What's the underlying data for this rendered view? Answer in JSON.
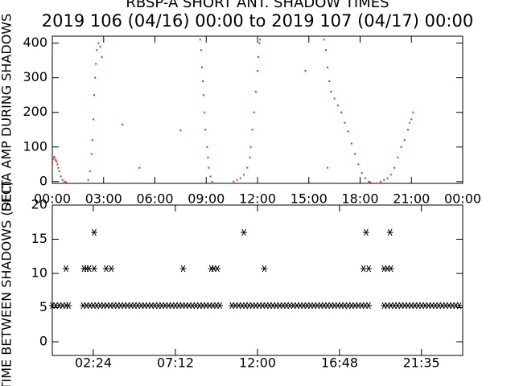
{
  "chart_data": [
    {
      "type": "scatter",
      "title": "RBSP-A SHORT ANT. SHADOW TIMES",
      "subtitle": "2019 106 (04/16) 00:00 to 2019 107 (04/17) 00:00",
      "ylabel": "DELTA AMP DURING SHADOWS",
      "xlim": [
        0,
        24
      ],
      "ylim": [
        -5,
        420
      ],
      "xticks": [
        {
          "value": 0,
          "label": "00:00"
        },
        {
          "value": 3,
          "label": "03:00"
        },
        {
          "value": 6,
          "label": "06:00"
        },
        {
          "value": 9,
          "label": "09:00"
        },
        {
          "value": 12,
          "label": "12:00"
        },
        {
          "value": 15,
          "label": "15:00"
        },
        {
          "value": 18,
          "label": "18:00"
        },
        {
          "value": 21,
          "label": "21:00"
        },
        {
          "value": 24,
          "label": "00:00"
        }
      ],
      "yticks": [
        0,
        100,
        200,
        300,
        400
      ],
      "color": "#e8301c",
      "x": [
        0,
        0.05,
        0.1,
        0.15,
        0.2,
        0.25,
        0.3,
        0.35,
        0.4,
        0.5,
        0.6,
        0.7,
        0.8,
        2.1,
        2.2,
        2.3,
        2.35,
        2.4,
        2.45,
        2.5,
        2.55,
        2.6,
        2.7,
        2.8,
        2.9,
        3.0,
        4.1,
        5.1,
        7.5,
        8.65,
        8.7,
        8.75,
        8.8,
        8.85,
        8.9,
        8.95,
        9.05,
        9.1,
        9.15,
        9.25,
        9.35,
        10.6,
        10.8,
        11.0,
        11.2,
        11.4,
        11.55,
        11.6,
        11.7,
        11.8,
        11.9,
        12.0,
        12.05,
        12.1,
        12.15,
        14.8,
        16.1,
        15.9,
        16.0,
        16.1,
        16.2,
        16.3,
        16.5,
        16.7,
        16.9,
        17.1,
        17.3,
        17.5,
        17.7,
        17.9,
        18.1,
        18.3,
        18.5,
        18.6,
        19.2,
        19.4,
        19.6,
        19.8,
        20.0,
        20.2,
        20.4,
        20.6,
        20.8,
        20.9,
        21.0,
        21.1
      ],
      "y": [
        55,
        65,
        72,
        68,
        62,
        58,
        50,
        40,
        30,
        15,
        5,
        0,
        -2,
        5,
        30,
        80,
        120,
        180,
        250,
        300,
        340,
        380,
        400,
        390,
        360,
        410,
        165,
        40,
        148,
        410,
        380,
        330,
        290,
        250,
        200,
        150,
        100,
        70,
        40,
        15,
        0,
        0,
        5,
        10,
        20,
        40,
        70,
        100,
        150,
        200,
        260,
        320,
        360,
        400,
        410,
        320,
        40,
        410,
        380,
        330,
        290,
        260,
        240,
        220,
        200,
        170,
        145,
        110,
        80,
        50,
        25,
        10,
        0,
        -2,
        0,
        5,
        10,
        20,
        40,
        70,
        100,
        120,
        150,
        170,
        180,
        200
      ]
    },
    {
      "type": "asterisk",
      "ylabel": "TIME BETWEEN SHADOWS (SEC)",
      "xlim": [
        0,
        24
      ],
      "ylim": [
        -2,
        20
      ],
      "xticks": [
        {
          "value": 2.4,
          "label": "02:24"
        },
        {
          "value": 7.2,
          "label": "07:12"
        },
        {
          "value": 12,
          "label": "12:00"
        },
        {
          "value": 16.8,
          "label": "16:48"
        },
        {
          "value": 21.583,
          "label": "21:35"
        }
      ],
      "yticks": [
        0,
        5,
        10,
        15,
        20
      ],
      "color": "#000000",
      "x": [
        0,
        0.2,
        0.4,
        0.6,
        0.8,
        0.95,
        1.8,
        2,
        2.2,
        2.4,
        2.6,
        2.8,
        3,
        3.2,
        3.4,
        3.6,
        3.8,
        4,
        4.2,
        4.4,
        4.6,
        4.8,
        5,
        5.2,
        5.4,
        5.6,
        5.8,
        6,
        6.2,
        6.4,
        6.6,
        6.8,
        7,
        7.2,
        7.4,
        7.6,
        7.8,
        8,
        8.2,
        8.4,
        8.6,
        8.8,
        9,
        9.2,
        9.4,
        9.6,
        9.8,
        10.5,
        10.7,
        10.9,
        11.1,
        11.3,
        11.5,
        11.7,
        11.9,
        12.1,
        12.3,
        12.5,
        12.7,
        12.9,
        13.1,
        13.3,
        13.5,
        13.7,
        13.9,
        14.1,
        14.3,
        14.5,
        14.7,
        14.9,
        15.1,
        15.3,
        15.5,
        15.7,
        15.9,
        16.1,
        16.3,
        16.5,
        16.7,
        16.9,
        17.1,
        17.3,
        17.5,
        17.7,
        17.9,
        18.1,
        18.3,
        18.5,
        19.4,
        19.6,
        19.8,
        20,
        20.2,
        20.4,
        20.6,
        20.8,
        21,
        21.2,
        21.4,
        21.6,
        21.8,
        22,
        22.2,
        22.4,
        22.6,
        22.8,
        23,
        23.2,
        23.4,
        23.6,
        23.8,
        0.8,
        1.85,
        2.0,
        2.15,
        2.45,
        2.45,
        3.15,
        3.45,
        7.65,
        9.3,
        9.45,
        9.65,
        11.2,
        12.4,
        18.2,
        18.35,
        18.5,
        19.4,
        19.6,
        19.75,
        19.8
      ],
      "y": [
        5.3,
        5.3,
        5.3,
        5.3,
        5.3,
        5.3,
        5.3,
        5.3,
        5.3,
        5.3,
        5.3,
        5.3,
        5.3,
        5.3,
        5.3,
        5.3,
        5.3,
        5.3,
        5.3,
        5.3,
        5.3,
        5.3,
        5.3,
        5.3,
        5.3,
        5.3,
        5.3,
        5.3,
        5.3,
        5.3,
        5.3,
        5.3,
        5.3,
        5.3,
        5.3,
        5.3,
        5.3,
        5.3,
        5.3,
        5.3,
        5.3,
        5.3,
        5.3,
        5.3,
        5.3,
        5.3,
        5.3,
        5.3,
        5.3,
        5.3,
        5.3,
        5.3,
        5.3,
        5.3,
        5.3,
        5.3,
        5.3,
        5.3,
        5.3,
        5.3,
        5.3,
        5.3,
        5.3,
        5.3,
        5.3,
        5.3,
        5.3,
        5.3,
        5.3,
        5.3,
        5.3,
        5.3,
        5.3,
        5.3,
        5.3,
        5.3,
        5.3,
        5.3,
        5.3,
        5.3,
        5.3,
        5.3,
        5.3,
        5.3,
        5.3,
        5.3,
        5.3,
        5.3,
        5.3,
        5.3,
        5.3,
        5.3,
        5.3,
        5.3,
        5.3,
        5.3,
        5.3,
        5.3,
        5.3,
        5.3,
        5.3,
        5.3,
        5.3,
        5.3,
        5.3,
        5.3,
        5.3,
        5.3,
        5.3,
        5.3,
        5.3,
        10.7,
        10.7,
        10.7,
        10.7,
        10.7,
        16,
        10.7,
        10.7,
        10.7,
        10.7,
        10.7,
        10.7,
        16,
        10.7,
        10.7,
        16,
        10.7,
        10.7,
        10.7,
        16,
        10.7
      ]
    }
  ]
}
